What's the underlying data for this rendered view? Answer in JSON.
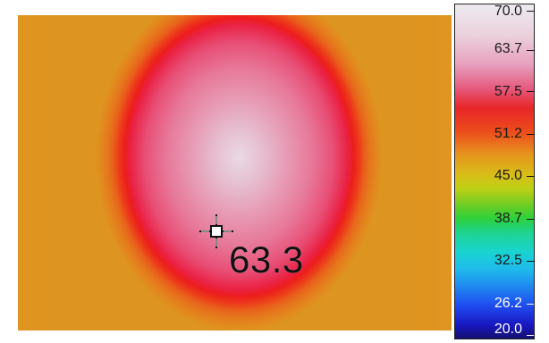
{
  "thermal_view": {
    "spot_value": "63.3",
    "icon": "crosshair-icon"
  },
  "temperature_scale": {
    "labels": [
      "70.0",
      "63.7",
      "57.5",
      "51.2",
      "45.0",
      "38.7",
      "32.5",
      "26.2",
      "20.0"
    ],
    "max": 70.0,
    "min": 20.0,
    "colors": {
      "hot": "#eeeaf0",
      "warm": "#e82628",
      "mid": "#e6951e",
      "green": "#2ed13a",
      "cyan": "#18d4cf",
      "blue": "#1f4df0",
      "cold": "#15106e"
    }
  }
}
